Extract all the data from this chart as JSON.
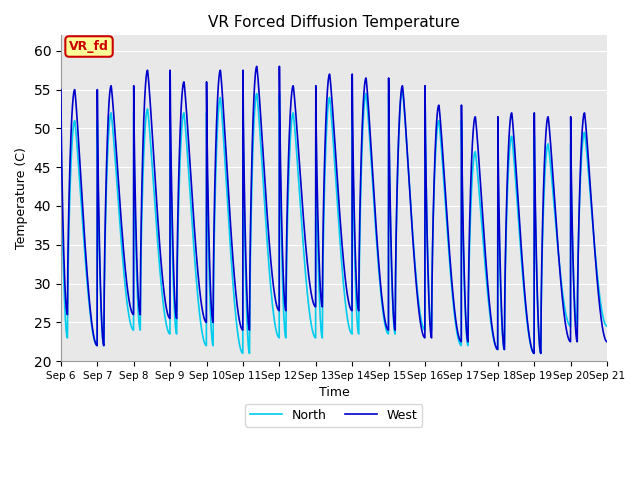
{
  "title": "VR Forced Diffusion Temperature",
  "ylabel": "Temperature (C)",
  "xlabel": "Time",
  "ylim": [
    20,
    62
  ],
  "yticks": [
    20,
    25,
    30,
    35,
    40,
    45,
    50,
    55,
    60
  ],
  "num_days": 15,
  "west_color": "#0000CC",
  "north_color": "#00CCEE",
  "west_linewidth": 1.2,
  "north_linewidth": 1.2,
  "annotation_text": "VR_fd",
  "annotation_bg": "#FFFF99",
  "annotation_edge": "#CC0000",
  "background_color": "#E8E8E8",
  "title_fontsize": 11,
  "peaks_west": [
    55.0,
    55.5,
    57.5,
    56.0,
    57.5,
    58.0,
    55.5,
    57.0,
    56.5,
    55.5,
    53.0,
    51.5,
    52.0,
    51.5,
    52.0
  ],
  "troughs_west": [
    26.0,
    22.0,
    26.0,
    25.5,
    25.0,
    24.0,
    26.5,
    27.0,
    26.5,
    24.0,
    23.0,
    22.5,
    21.5,
    21.0,
    22.5
  ],
  "peaks_north": [
    51.0,
    52.0,
    52.5,
    52.0,
    54.0,
    54.5,
    52.0,
    54.0,
    54.5,
    55.0,
    51.0,
    47.0,
    49.0,
    48.0,
    49.5
  ],
  "troughs_north": [
    23.0,
    22.0,
    24.0,
    23.5,
    22.0,
    21.0,
    23.0,
    23.0,
    23.5,
    23.5,
    24.0,
    22.0,
    21.5,
    21.0,
    24.5
  ],
  "x_tick_labels": [
    "Sep 6",
    "Sep 7",
    "Sep 8",
    "Sep 9",
    "Sep 10",
    "Sep 11",
    "Sep 12",
    "Sep 13",
    "Sep 14",
    "Sep 15",
    "Sep 16",
    "Sep 17",
    "Sep 18",
    "Sep 19",
    "Sep 20",
    "Sep 21"
  ],
  "legend_west_label": "West",
  "legend_north_label": "North"
}
